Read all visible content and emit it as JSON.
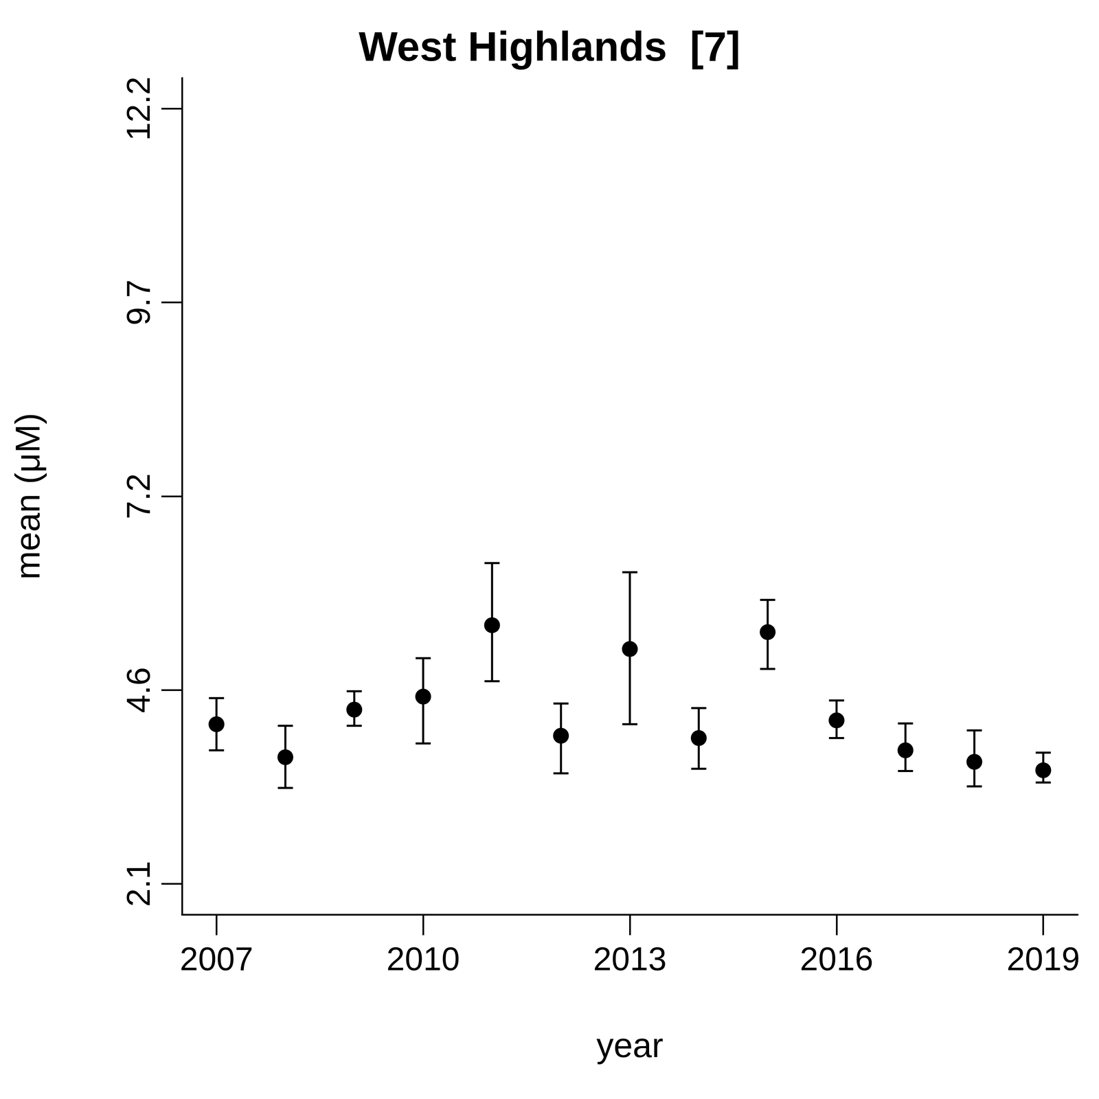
{
  "chart_data": {
    "type": "scatter",
    "title": "West Highlands  [7]",
    "x_label": "year",
    "y_label": "mean (μM)",
    "x": [
      2007,
      2008,
      2009,
      2010,
      2011,
      2012,
      2013,
      2014,
      2015,
      2016,
      2017,
      2018,
      2019
    ],
    "values": [
      4.18,
      3.75,
      4.37,
      4.54,
      5.47,
      4.03,
      5.16,
      4.0,
      5.38,
      4.23,
      3.84,
      3.69,
      3.58
    ],
    "error_lower": [
      3.84,
      3.35,
      4.16,
      3.93,
      4.74,
      3.54,
      4.18,
      3.6,
      4.9,
      4.0,
      3.57,
      3.37,
      3.42
    ],
    "error_upper": [
      4.52,
      4.16,
      4.61,
      5.04,
      6.28,
      4.45,
      6.16,
      4.39,
      5.8,
      4.49,
      4.19,
      4.1,
      3.81
    ],
    "color": "#000000",
    "marker": "circle",
    "xlim": [
      2006.5,
      2019.5
    ],
    "xticks": [
      2007,
      2010,
      2013,
      2016,
      2019
    ],
    "ylim": [
      1.7,
      12.6
    ],
    "yticks": [
      2.1,
      {
        "value": 4.625,
        "label": "4.6"
      },
      {
        "value": 7.15,
        "label": "7.2"
      },
      {
        "value": 9.675,
        "label": "9.7"
      },
      12.2
    ],
    "grid": false
  }
}
